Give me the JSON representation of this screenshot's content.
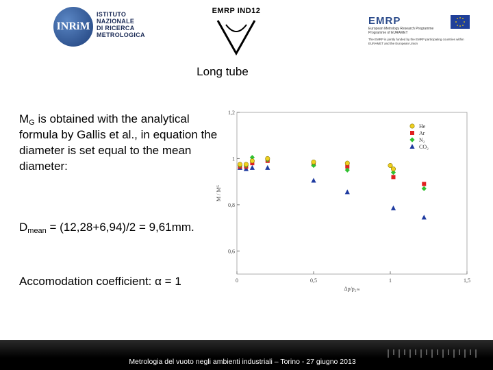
{
  "logos": {
    "inrim_mark": "INRiM",
    "inrim_lines": [
      "ISTITUTO",
      "NAZIONALE",
      "DI RICERCA",
      "METROLOGICA"
    ],
    "emrp_project": "EMRP IND12",
    "emrp": "EMRP",
    "emrp_sub1": "European Metrology Research Programme",
    "emrp_sub2": "Programme of EURAMET",
    "funded_note": "The EMRP is jointly funded by the EMRP participating countries within EURAMET and the European Union"
  },
  "slide": {
    "title": "Long tube",
    "p1_a": "M",
    "p1_sub": "G",
    "p1_b": " is obtained with the analytical formula by Gallis et al., in equation  the diameter is set equal to the mean diameter:",
    "p2_a": "D",
    "p2_sub": "mean",
    "p2_b": " = (12,28+6,94)/2 = 9,61mm.",
    "p3": "Accomodation coefficient: α = 1"
  },
  "footer": {
    "text": "Metrologia del vuoto negli ambienti industriali – Torino - 27 giugno 2013"
  },
  "chart_data": {
    "type": "scatter",
    "xlabel": "Δp/p₂ₘ",
    "ylabel": "M / Mᴳ",
    "xlim": [
      0,
      1.5
    ],
    "ylim": [
      0.5,
      1.2
    ],
    "xticks": [
      "0",
      "0,5",
      "1",
      "1,5"
    ],
    "yticks": [
      "0,6",
      "0,8",
      "1",
      "1,2"
    ],
    "legend_position": "top-right",
    "series": [
      {
        "name": "He",
        "marker": "circle",
        "color": "#f0d020",
        "points": [
          [
            0.02,
            0.975
          ],
          [
            0.06,
            0.975
          ],
          [
            0.1,
            0.99
          ],
          [
            0.2,
            1.0
          ],
          [
            0.5,
            0.985
          ],
          [
            0.72,
            0.98
          ],
          [
            1.0,
            0.97
          ],
          [
            1.02,
            0.955
          ]
        ]
      },
      {
        "name": "Ar",
        "marker": "square",
        "color": "#e02020",
        "points": [
          [
            0.02,
            0.965
          ],
          [
            0.06,
            0.965
          ],
          [
            0.1,
            0.98
          ],
          [
            0.2,
            0.99
          ],
          [
            0.5,
            0.975
          ],
          [
            0.72,
            0.965
          ],
          [
            1.02,
            0.92
          ],
          [
            1.22,
            0.89
          ]
        ]
      },
      {
        "name": "N₂",
        "marker": "diamond",
        "color": "#30c030",
        "points": [
          [
            0.02,
            0.97
          ],
          [
            0.06,
            0.97
          ],
          [
            0.1,
            1.005
          ],
          [
            0.2,
            0.995
          ],
          [
            0.5,
            0.97
          ],
          [
            0.72,
            0.95
          ],
          [
            1.02,
            0.94
          ],
          [
            1.22,
            0.87
          ]
        ]
      },
      {
        "name": "CO₂",
        "marker": "triangle",
        "color": "#1e3aa0",
        "points": [
          [
            0.02,
            0.96
          ],
          [
            0.06,
            0.955
          ],
          [
            0.1,
            0.96
          ],
          [
            0.2,
            0.96
          ],
          [
            0.5,
            0.905
          ],
          [
            0.72,
            0.855
          ],
          [
            1.02,
            0.785
          ],
          [
            1.22,
            0.745
          ]
        ]
      }
    ]
  }
}
